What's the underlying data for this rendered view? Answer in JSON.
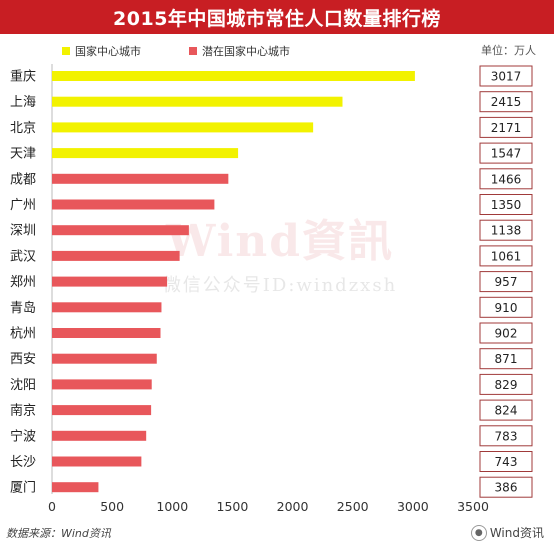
{
  "title": "2015年中国城市常住人口数量排行榜",
  "legend": {
    "national": "国家中心城市",
    "potential": "潜在国家中心城市"
  },
  "unit": "单位：万人",
  "watermark": {
    "main": "Wind資訊",
    "sub": "微信公众号ID:windzxsh"
  },
  "footer": {
    "source": "数据来源：Wind资讯",
    "brand": "Wind资讯",
    "brand_icon": "wechat-icon"
  },
  "colors": {
    "title_bg": "#c81e23",
    "national": "#f2f200",
    "potential": "#e8575b",
    "axis": "#bbbbbb",
    "value_box_border": "#a03a3a"
  },
  "chart_data": {
    "type": "bar",
    "orientation": "horizontal",
    "title": "2015年中国城市常住人口数量排行榜",
    "xlabel": "",
    "ylabel": "",
    "xlim": [
      0,
      3500
    ],
    "xticks": [
      0,
      500,
      1000,
      1500,
      2000,
      2500,
      3000,
      3500
    ],
    "categories": [
      "重庆",
      "上海",
      "北京",
      "天津",
      "成都",
      "广州",
      "深圳",
      "武汉",
      "郑州",
      "青岛",
      "杭州",
      "西安",
      "沈阳",
      "南京",
      "宁波",
      "长沙",
      "厦门"
    ],
    "values": [
      3017,
      2415,
      2171,
      1547,
      1466,
      1350,
      1138,
      1061,
      957,
      910,
      902,
      871,
      829,
      824,
      783,
      743,
      386
    ],
    "groups": [
      "national",
      "national",
      "national",
      "national",
      "potential",
      "potential",
      "potential",
      "potential",
      "potential",
      "potential",
      "potential",
      "potential",
      "potential",
      "potential",
      "potential",
      "potential",
      "potential"
    ],
    "series_names": {
      "national": "国家中心城市",
      "potential": "潜在国家中心城市"
    },
    "legend_position": "top-left",
    "grid": false
  }
}
